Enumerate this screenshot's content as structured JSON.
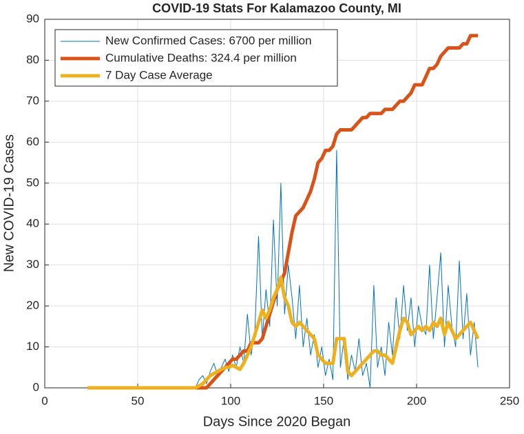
{
  "chart_data": {
    "type": "line",
    "title": "COVID-19 Stats For Kalamazoo County, MI",
    "x_label": "Days Since 2020 Began",
    "y_label": "New COVID-19 Cases",
    "xlim": [
      0,
      250
    ],
    "xticks": [
      0,
      50,
      100,
      150,
      200,
      250
    ],
    "ylim": [
      0,
      90
    ],
    "yticks": [
      0,
      10,
      20,
      30,
      40,
      50,
      60,
      70,
      80,
      90
    ],
    "grid": true,
    "legend": "upper-left",
    "x": [
      23,
      25,
      27,
      29,
      31,
      33,
      35,
      37,
      39,
      41,
      43,
      45,
      47,
      49,
      51,
      53,
      55,
      57,
      59,
      61,
      63,
      65,
      67,
      69,
      71,
      73,
      75,
      77,
      79,
      81,
      83,
      85,
      87,
      89,
      91,
      93,
      95,
      97,
      99,
      101,
      103,
      105,
      107,
      109,
      111,
      113,
      115,
      117,
      119,
      121,
      123,
      125,
      127,
      129,
      131,
      133,
      135,
      137,
      139,
      141,
      143,
      145,
      147,
      149,
      151,
      153,
      155,
      157,
      159,
      161,
      163,
      165,
      167,
      169,
      171,
      173,
      175,
      177,
      179,
      181,
      183,
      185,
      187,
      189,
      191,
      193,
      195,
      197,
      199,
      201,
      203,
      205,
      207,
      209,
      211,
      213,
      215,
      217,
      219,
      221,
      223,
      225,
      227,
      229,
      231,
      233
    ],
    "series": [
      {
        "name": "New Confirmed Cases: 6700 per million",
        "color": "#0072bd",
        "width": 1,
        "values": [
          0,
          0,
          0,
          0,
          0,
          0,
          0,
          0,
          0,
          0,
          0,
          0,
          0,
          0,
          0,
          0,
          0,
          0,
          0,
          0,
          0,
          0,
          0,
          0,
          0,
          0,
          0,
          0,
          0,
          0,
          2,
          3,
          1,
          4,
          6,
          3,
          5,
          7,
          4,
          8,
          5,
          10,
          6,
          18,
          8,
          14,
          37,
          12,
          24,
          15,
          41,
          20,
          50,
          18,
          30,
          22,
          12,
          25,
          10,
          17,
          8,
          13,
          5,
          10,
          3,
          7,
          2,
          58,
          5,
          12,
          2,
          8,
          4,
          12,
          3,
          6,
          0,
          25,
          5,
          10,
          3,
          16,
          8,
          22,
          12,
          25,
          14,
          22,
          10,
          20,
          15,
          13,
          30,
          12,
          22,
          33,
          10,
          25,
          15,
          10,
          31,
          12,
          23,
          8,
          16,
          5
        ]
      },
      {
        "name": "Cumulative Deaths: 324.4 per million",
        "color": "#d95319",
        "width": 5,
        "values": [
          0,
          0,
          0,
          0,
          0,
          0,
          0,
          0,
          0,
          0,
          0,
          0,
          0,
          0,
          0,
          0,
          0,
          0,
          0,
          0,
          0,
          0,
          0,
          0,
          0,
          0,
          0,
          0,
          0,
          0,
          0,
          0,
          0,
          1,
          2,
          3,
          4,
          5,
          6,
          7,
          7,
          8,
          9,
          9,
          11,
          11,
          11,
          12,
          15,
          18,
          21,
          24,
          26,
          28,
          33,
          38,
          42,
          43,
          44,
          46,
          48,
          51,
          55,
          56,
          58,
          58,
          59,
          62,
          63,
          63,
          63,
          63,
          64,
          65,
          66,
          66,
          67,
          67,
          67,
          67,
          68,
          68,
          68,
          69,
          70,
          70,
          71,
          72,
          74,
          74,
          74,
          76,
          78,
          78,
          79,
          81,
          82,
          83,
          83,
          83,
          83,
          84,
          84,
          86,
          86,
          86
        ]
      },
      {
        "name": "7 Day Case Average",
        "color": "#edb120",
        "width": 5,
        "values": [
          0,
          0,
          0,
          0,
          0,
          0,
          0,
          0,
          0,
          0,
          0,
          0,
          0,
          0,
          0,
          0,
          0,
          0,
          0,
          0,
          0,
          0,
          0,
          0,
          0,
          0,
          0,
          0,
          0,
          0,
          0.5,
          1,
          2,
          3,
          3.5,
          4,
          4.5,
          5,
          5,
          5.5,
          5,
          4.5,
          6,
          8,
          10,
          13,
          16,
          19,
          17,
          19,
          22,
          24,
          27,
          22,
          20,
          16,
          15,
          16,
          15,
          14,
          13,
          12,
          8,
          7,
          6,
          6,
          6,
          12,
          12,
          12,
          4,
          3,
          4,
          5,
          6,
          7,
          8,
          9,
          9,
          8,
          8,
          7,
          6,
          10,
          14,
          17,
          16,
          13,
          14,
          15,
          14,
          15,
          14,
          16,
          15,
          17,
          13,
          16,
          14,
          12,
          13,
          14,
          15,
          16,
          14,
          12
        ]
      }
    ]
  }
}
